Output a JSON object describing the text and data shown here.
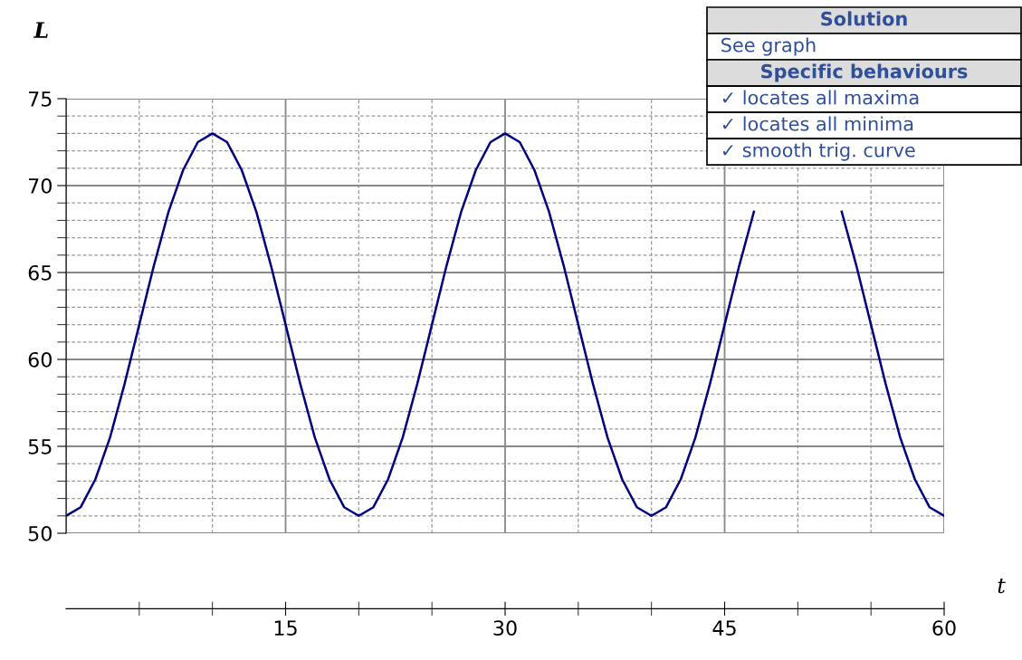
{
  "chart_data": {
    "type": "line",
    "xlabel": "t",
    "ylabel": "L",
    "x": [
      0,
      1,
      2,
      3,
      4,
      5,
      6,
      7,
      8,
      9,
      10,
      11,
      12,
      13,
      14,
      15,
      16,
      17,
      18,
      19,
      20,
      21,
      22,
      23,
      24,
      25,
      26,
      27,
      28,
      29,
      30,
      31,
      32,
      33,
      34,
      35,
      36,
      37,
      38,
      39,
      40,
      41,
      42,
      43,
      44,
      45,
      46,
      47,
      48,
      49,
      50,
      51,
      52,
      53,
      54,
      55,
      56,
      57,
      58,
      59,
      60
    ],
    "series": [
      {
        "color": "#000080",
        "values": [
          51,
          51.5,
          53.1,
          55.5,
          58.6,
          62,
          65.4,
          68.5,
          70.9,
          72.5,
          73,
          72.5,
          70.9,
          68.5,
          65.4,
          62,
          58.6,
          55.5,
          53.1,
          51.5,
          51,
          51.5,
          53.1,
          55.5,
          58.6,
          62,
          65.4,
          68.5,
          70.9,
          72.5,
          73,
          72.5,
          70.9,
          68.5,
          65.4,
          62,
          58.6,
          55.5,
          53.1,
          51.5,
          51,
          51.5,
          53.1,
          55.5,
          58.6,
          62,
          65.4,
          68.5,
          null,
          null,
          null,
          null,
          null,
          68.5,
          65.4,
          62,
          58.6,
          55.5,
          53.1,
          51.5,
          51
        ]
      }
    ],
    "xlim": [
      0,
      60
    ],
    "ylim": [
      50,
      75
    ],
    "xticks": [
      {
        "value": 5,
        "label": null
      },
      {
        "value": 10,
        "label": null
      },
      15,
      {
        "value": 20,
        "label": null
      },
      {
        "value": 25,
        "label": null
      },
      30,
      {
        "value": 35,
        "label": null
      },
      {
        "value": 40,
        "label": null
      },
      45,
      {
        "value": 50,
        "label": null
      },
      {
        "value": 55,
        "label": null
      },
      60
    ],
    "yticks": [
      50,
      {
        "value": 51,
        "label": null
      },
      {
        "value": 52,
        "label": null
      },
      {
        "value": 53,
        "label": null
      },
      {
        "value": 54,
        "label": null
      },
      55,
      {
        "value": 56,
        "label": null
      },
      {
        "value": 57,
        "label": null
      },
      {
        "value": 58,
        "label": null
      },
      {
        "value": 59,
        "label": null
      },
      60,
      {
        "value": 61,
        "label": null
      },
      {
        "value": 62,
        "label": null
      },
      {
        "value": 63,
        "label": null
      },
      {
        "value": 64,
        "label": null
      },
      65,
      {
        "value": 66,
        "label": null
      },
      {
        "value": 67,
        "label": null
      },
      {
        "value": 68,
        "label": null
      },
      {
        "value": 69,
        "label": null
      },
      70,
      {
        "value": 71,
        "label": null
      },
      {
        "value": 72,
        "label": null
      },
      {
        "value": 73,
        "label": null
      },
      {
        "value": 74,
        "label": null
      },
      75
    ],
    "grid": true,
    "marker": "none",
    "line_style": "solid",
    "annotations": [
      "Solution",
      "See graph",
      "Specific behaviours",
      "✓ locates all maxima",
      "✓ locates all minima",
      "✓ smooth trig. curve"
    ]
  }
}
